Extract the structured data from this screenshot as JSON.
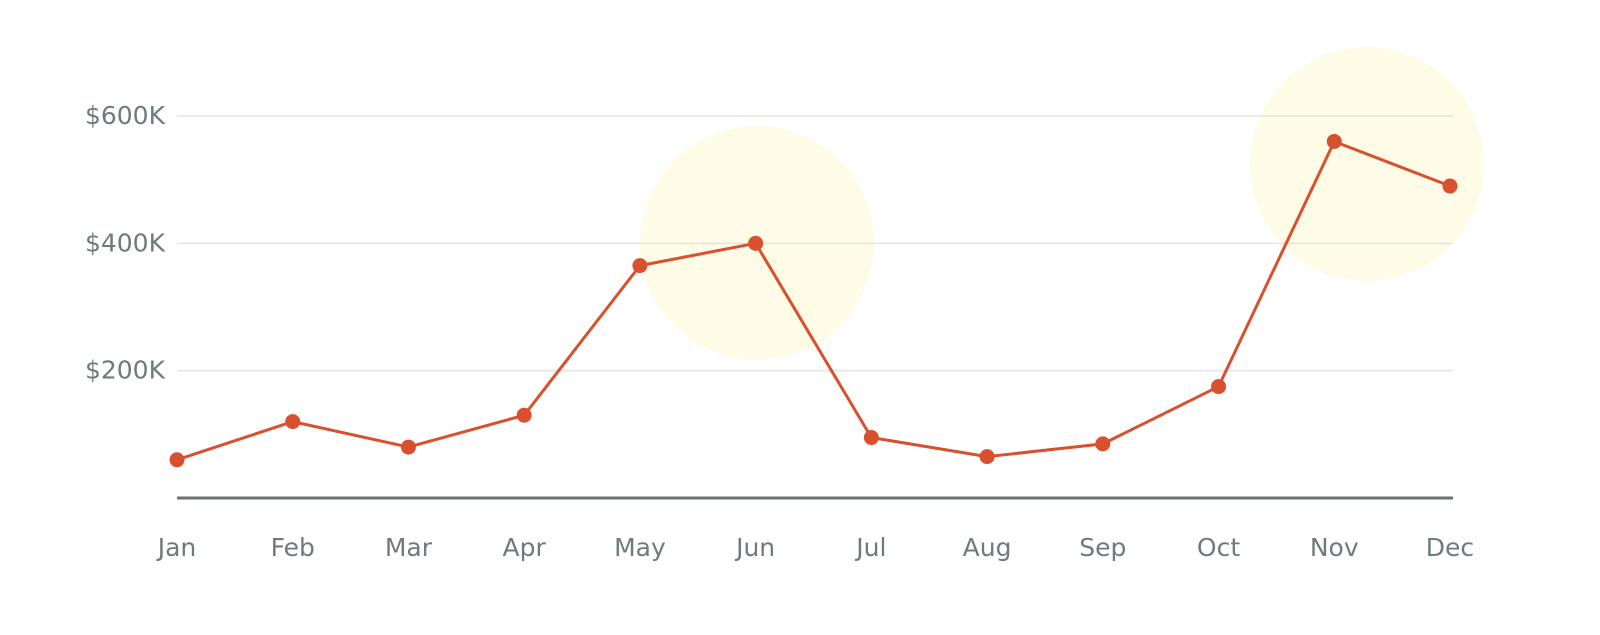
{
  "chart_data": {
    "type": "line",
    "categories": [
      "Jan",
      "Feb",
      "Mar",
      "Apr",
      "May",
      "Jun",
      "Jul",
      "Aug",
      "Sep",
      "Oct",
      "Nov",
      "Dec"
    ],
    "series": [
      {
        "color": "#d9502e",
        "values": [
          60000,
          120000,
          80000,
          130000,
          365000,
          400000,
          95000,
          65000,
          85000,
          175000,
          560000,
          490000
        ]
      }
    ],
    "ylim": [
      0,
      600000
    ],
    "yticks": [
      {
        "value": 200000,
        "label": "$200K"
      },
      {
        "value": 400000,
        "label": "$400K"
      },
      {
        "value": 600000,
        "label": "$600K"
      }
    ],
    "grid": true
  }
}
